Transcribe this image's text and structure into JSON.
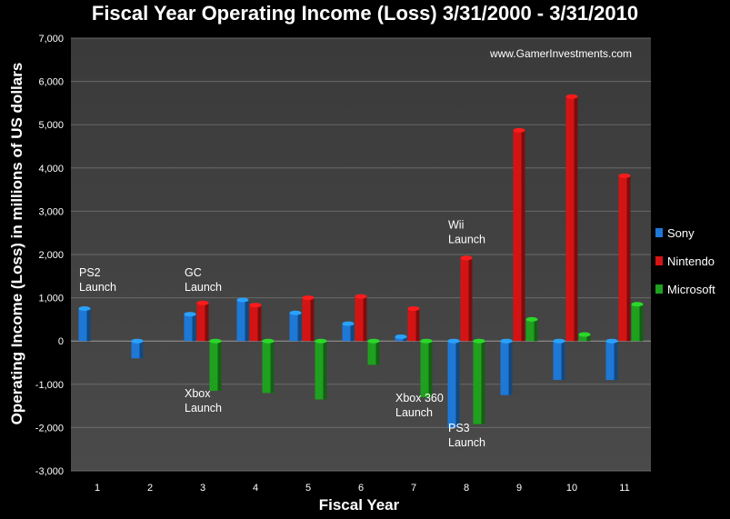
{
  "chart_data": {
    "type": "bar",
    "title": "Fiscal Year Operating Income (Loss) 3/31/2000 - 3/31/2010",
    "xlabel": "Fiscal Year",
    "ylabel": "Operating Income (Loss) in millions of US dollars",
    "watermark": "www.GamerInvestments.com",
    "categories": [
      "1",
      "2",
      "3",
      "4",
      "5",
      "6",
      "7",
      "8",
      "9",
      "10",
      "11"
    ],
    "ylim": [
      -3000,
      7000
    ],
    "yticks": [
      "-3,000",
      "-2,000",
      "-1,000",
      "0",
      "1,000",
      "2,000",
      "3,000",
      "4,000",
      "5,000",
      "6,000",
      "7,000"
    ],
    "grid": true,
    "legend_position": "right",
    "series": [
      {
        "name": "Sony",
        "color": "#1e78d6",
        "values": [
          750,
          -400,
          620,
          950,
          650,
          400,
          100,
          -2000,
          -1250,
          -900,
          -900
        ]
      },
      {
        "name": "Nintendo",
        "color": "#d41414",
        "values": [
          null,
          null,
          880,
          830,
          1000,
          1030,
          750,
          1920,
          4870,
          5650,
          3820
        ]
      },
      {
        "name": "Microsoft",
        "color": "#1fa01f",
        "values": [
          null,
          null,
          -1150,
          -1200,
          -1350,
          -550,
          -1300,
          -1920,
          500,
          150,
          850
        ]
      }
    ],
    "annotations": [
      {
        "category": "1",
        "y": 1500,
        "lines": [
          "PS2",
          "Launch"
        ]
      },
      {
        "category": "3",
        "y": 1500,
        "lines": [
          "GC",
          "Launch"
        ]
      },
      {
        "category": "3",
        "y": -1300,
        "lines": [
          "Xbox",
          "Launch"
        ]
      },
      {
        "category": "7",
        "y": -1400,
        "lines": [
          "Xbox 360",
          "Launch"
        ]
      },
      {
        "category": "8",
        "y": 2600,
        "lines": [
          "Wii",
          "Launch"
        ]
      },
      {
        "category": "8",
        "y": -2100,
        "lines": [
          "PS3",
          "Launch"
        ]
      }
    ]
  }
}
